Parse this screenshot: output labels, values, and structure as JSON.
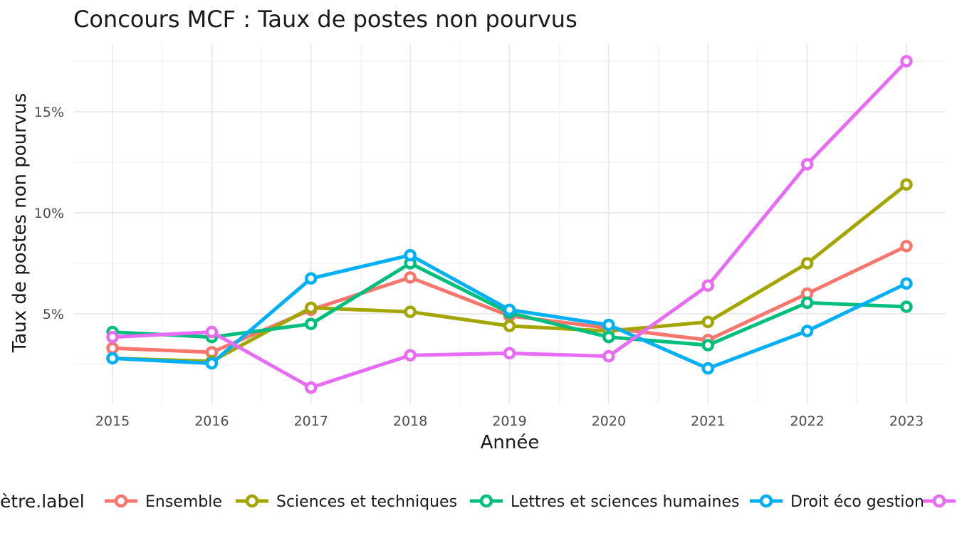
{
  "chart_data": {
    "type": "line",
    "title": "Concours MCF : Taux de postes non pourvus",
    "xlabel": "Année",
    "ylabel": "Taux de postes non pourvus",
    "x": [
      2015,
      2016,
      2017,
      2018,
      2019,
      2020,
      2021,
      2022,
      2023
    ],
    "x_ticks": [
      "2015",
      "2016",
      "2017",
      "2018",
      "2019",
      "2020",
      "2021",
      "2022",
      "2023"
    ],
    "y_ticks": [
      5,
      10,
      15
    ],
    "y_tick_labels": [
      "5%",
      "10%",
      "15%"
    ],
    "ylim": [
      1.0,
      18.3
    ],
    "grid": true,
    "legend": {
      "title": "ètre.label",
      "position": "bottom"
    },
    "series": [
      {
        "name": "Ensemble",
        "color": "#F8766D",
        "values": [
          3.3,
          3.1,
          5.2,
          6.8,
          4.9,
          4.3,
          3.7,
          6.0,
          8.35
        ]
      },
      {
        "name": "Sciences et techniques",
        "color": "#A3A500",
        "values": [
          2.8,
          2.65,
          5.3,
          5.1,
          4.4,
          4.15,
          4.6,
          7.5,
          11.4
        ]
      },
      {
        "name": "Lettres et sciences humaines",
        "color": "#00BF7D",
        "values": [
          4.1,
          3.85,
          4.5,
          7.5,
          5.05,
          3.85,
          3.45,
          5.55,
          5.35
        ]
      },
      {
        "name": "Droit éco gestion",
        "color": "#00B0F6",
        "values": [
          2.8,
          2.55,
          6.75,
          7.9,
          5.2,
          4.45,
          2.3,
          4.15,
          6.5
        ]
      },
      {
        "name": "",
        "color": "#E76BF3",
        "values": [
          3.85,
          4.1,
          1.35,
          2.95,
          3.05,
          2.9,
          6.4,
          12.4,
          17.5
        ]
      }
    ]
  }
}
